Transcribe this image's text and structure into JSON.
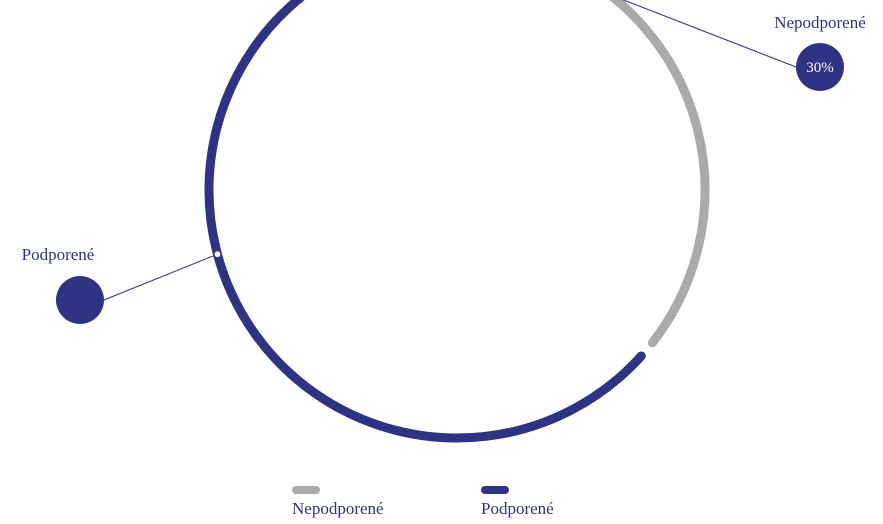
{
  "chart_data": {
    "type": "pie",
    "style": "donut-ring",
    "slices": [
      {
        "name": "Nepodporené",
        "value": 30,
        "label": "30%",
        "color": "#aaaaaa",
        "badge_color": "#2e3384"
      },
      {
        "name": "Podporené",
        "value": 70,
        "label": "",
        "color": "#2e3384",
        "badge_color": "#2e3384"
      }
    ],
    "legend": {
      "position": "bottom",
      "entries": [
        {
          "label": "Nepodporené",
          "color": "#aaaaaa"
        },
        {
          "label": "Podporené",
          "color": "#2e3384"
        }
      ]
    }
  },
  "colors": {
    "accent": "#2e3384",
    "muted": "#aaaaaa",
    "text": "#2e3384"
  }
}
